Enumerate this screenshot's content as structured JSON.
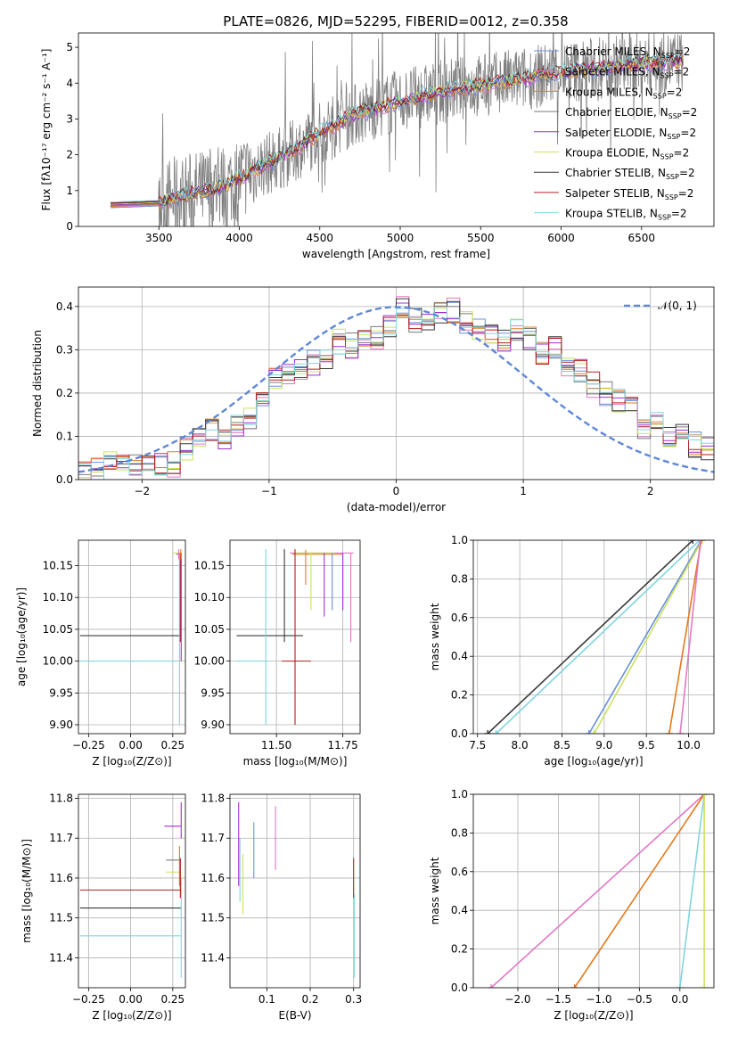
{
  "figure_title": "PLATE=0826, MJD=52295, FIBERID=0012, z=0.358",
  "colors": {
    "chabrier_miles": "#6a8fdc",
    "salpeter_miles": "#e377c2",
    "kroupa_miles": "#e07b20",
    "chabrier_elodie": "#7a7a7a",
    "salpeter_elodie": "#9f2fcf",
    "kroupa_elodie": "#c9e35c",
    "chabrier_stelib": "#3a3a3a",
    "salpeter_stelib": "#b22020",
    "kroupa_stelib": "#7fd6dc",
    "data": "#808080",
    "gauss": "#5f87d6"
  },
  "chart_data": [
    {
      "id": "spectrum",
      "type": "line",
      "xlabel": "wavelength [Angstrom, rest frame]",
      "ylabel": "Flux [fλ10⁻¹⁷ erg cm⁻² s⁻¹ A⁻¹]",
      "xlim": [
        3000,
        6950
      ],
      "ylim": [
        0,
        5.4
      ],
      "xticks": [
        "3500",
        "4000",
        "4500",
        "5000",
        "5500",
        "6000",
        "6500"
      ],
      "yticks": [
        "0",
        "1",
        "2",
        "3",
        "4",
        "5"
      ],
      "legend_position": "top-right",
      "series": [
        {
          "name": "Chabrier MILES, N",
          "sub": "SSP",
          "suffix": "=2",
          "color": "#6a8fdc"
        },
        {
          "name": "Salpeter MILES, N",
          "sub": "SSP",
          "suffix": "=2",
          "color": "#e377c2"
        },
        {
          "name": "Kroupa MILES, N",
          "sub": "SSP",
          "suffix": "=2",
          "color": "#e07b20"
        },
        {
          "name": "Chabrier ELODIE, N",
          "sub": "SSP",
          "suffix": "=2",
          "color": "#7a7a7a"
        },
        {
          "name": "Salpeter ELODIE, N",
          "sub": "SSP",
          "suffix": "=2",
          "color": "#9f2fcf"
        },
        {
          "name": "Kroupa ELODIE, N",
          "sub": "SSP",
          "suffix": "=2",
          "color": "#c9e35c"
        },
        {
          "name": "Chabrier STELIB, N",
          "sub": "SSP",
          "suffix": "=2",
          "color": "#3a3a3a"
        },
        {
          "name": "Salpeter STELIB, N",
          "sub": "SSP",
          "suffix": "=2",
          "color": "#b22020"
        },
        {
          "name": "Kroupa STELIB, N",
          "sub": "SSP",
          "suffix": "=2",
          "color": "#7fd6dc"
        }
      ],
      "continuum": {
        "x": [
          3200,
          3500,
          3700,
          3900,
          4100,
          4300,
          4500,
          4700,
          5000,
          5300,
          5600,
          6000,
          6400,
          6750
        ],
        "y": [
          0.6,
          0.65,
          0.9,
          1.1,
          1.6,
          2.0,
          2.6,
          3.1,
          3.5,
          3.8,
          4.0,
          4.3,
          4.5,
          4.6
        ]
      }
    },
    {
      "id": "residuals",
      "type": "histogram",
      "xlabel": "(data-model)/error",
      "ylabel": "Normed distribution",
      "xlim": [
        -2.5,
        2.5
      ],
      "ylim": [
        0,
        0.445
      ],
      "xticks": [
        "−2",
        "−1",
        "0",
        "1",
        "2"
      ],
      "yticks": [
        "0.0",
        "0.1",
        "0.2",
        "0.3",
        "0.4"
      ],
      "legend": "𝒩(0, 1)",
      "bin_width": 0.1,
      "bins_x": [
        -2.5,
        -2.4,
        -2.3,
        -2.2,
        -2.1,
        -2.0,
        -1.9,
        -1.8,
        -1.7,
        -1.6,
        -1.5,
        -1.4,
        -1.3,
        -1.2,
        -1.1,
        -1.0,
        -0.9,
        -0.8,
        -0.7,
        -0.6,
        -0.5,
        -0.4,
        -0.3,
        -0.2,
        -0.1,
        0.0,
        0.1,
        0.2,
        0.3,
        0.4,
        0.5,
        0.6,
        0.7,
        0.8,
        0.9,
        1.0,
        1.1,
        1.2,
        1.3,
        1.4,
        1.5,
        1.6,
        1.7,
        1.8,
        1.9,
        2.0,
        2.1,
        2.2,
        2.3,
        2.4
      ],
      "base": [
        0.015,
        0.02,
        0.05,
        0.04,
        0.03,
        0.05,
        0.04,
        0.035,
        0.07,
        0.09,
        0.12,
        0.1,
        0.13,
        0.14,
        0.18,
        0.23,
        0.25,
        0.26,
        0.27,
        0.28,
        0.32,
        0.31,
        0.33,
        0.33,
        0.35,
        0.4,
        0.37,
        0.36,
        0.38,
        0.39,
        0.36,
        0.35,
        0.34,
        0.32,
        0.35,
        0.33,
        0.29,
        0.31,
        0.26,
        0.25,
        0.22,
        0.2,
        0.18,
        0.16,
        0.12,
        0.13,
        0.1,
        0.11,
        0.08,
        0.07
      ]
    },
    {
      "id": "age_vs_Z",
      "type": "scatter",
      "xlabel": "Z [log₁₀(Z/Z⊙)]",
      "ylabel": "age  [log₁₀(age/yr)]",
      "xlim": [
        -0.31,
        0.325
      ],
      "ylim": [
        9.886,
        10.19
      ],
      "xticks": [
        "−0.25",
        "0.00",
        "0.25"
      ],
      "yticks": [
        "9.90",
        "9.95",
        "10.00",
        "10.05",
        "10.10",
        "10.15"
      ]
    },
    {
      "id": "age_vs_mass",
      "type": "scatter",
      "xlabel": "mass [log₁₀(M/M⊙)]",
      "xlim": [
        11.325,
        11.815
      ],
      "ylim": [
        9.886,
        10.19
      ],
      "xticks": [
        "11.50",
        "11.75"
      ],
      "yticks": [
        "9.90",
        "9.95",
        "10.00",
        "10.05",
        "10.10",
        "10.15"
      ]
    },
    {
      "id": "weight_vs_age",
      "type": "line",
      "xlabel": "age  [log₁₀(age/yr)]",
      "ylabel": "mass weight",
      "xlim": [
        7.45,
        10.3
      ],
      "ylim": [
        0,
        1
      ],
      "xticks": [
        "7.5",
        "8.0",
        "8.5",
        "9.0",
        "9.5",
        "10.0"
      ],
      "yticks": [
        "0.0",
        "0.2",
        "0.4",
        "0.6",
        "0.8",
        "1.0"
      ],
      "series": [
        {
          "x": [
            7.62,
            10.05
          ],
          "y": [
            0,
            1
          ],
          "color": "#3a3a3a"
        },
        {
          "x": [
            7.72,
            10.13
          ],
          "y": [
            0,
            1
          ],
          "color": "#7fd6dc"
        },
        {
          "x": [
            8.82,
            10.15
          ],
          "y": [
            0,
            1
          ],
          "color": "#6a8fdc"
        },
        {
          "x": [
            8.88,
            10.16
          ],
          "y": [
            0,
            1
          ],
          "color": "#c9e35c"
        },
        {
          "x": [
            9.77,
            10.15
          ],
          "y": [
            0,
            1
          ],
          "color": "#e07b20"
        },
        {
          "x": [
            9.9,
            10.14
          ],
          "y": [
            0,
            1
          ],
          "color": "#e377c2"
        }
      ]
    },
    {
      "id": "mass_vs_Z",
      "type": "scatter",
      "xlabel": "Z [log₁₀(Z/Z⊙)]",
      "ylabel": "mass [log₁₀(M/M⊙)]",
      "xlim": [
        -0.31,
        0.325
      ],
      "ylim": [
        11.325,
        11.81
      ],
      "xticks": [
        "−0.25",
        "0.00",
        "0.25"
      ],
      "yticks": [
        "11.4",
        "11.5",
        "11.6",
        "11.7",
        "11.8"
      ]
    },
    {
      "id": "mass_vs_ebv",
      "type": "scatter",
      "xlabel": "E(B-V)",
      "xlim": [
        0.015,
        0.315
      ],
      "ylim": [
        11.325,
        11.81
      ],
      "xticks": [
        "0.1",
        "0.2",
        "0.3"
      ],
      "yticks": [
        "11.4",
        "11.5",
        "11.6",
        "11.7",
        "11.8"
      ]
    },
    {
      "id": "weight_vs_Z",
      "type": "line",
      "xlabel": "Z [log₁₀(Z/Z⊙)]",
      "ylabel": "mass weight",
      "xlim": [
        -2.55,
        0.42
      ],
      "ylim": [
        0,
        1
      ],
      "xticks": [
        "−2.0",
        "−1.5",
        "−1.0",
        "−0.5",
        "0.0"
      ],
      "yticks": [
        "0.0",
        "0.2",
        "0.4",
        "0.6",
        "0.8",
        "1.0"
      ],
      "series": [
        {
          "x": [
            -2.33,
            0.3
          ],
          "y": [
            0,
            1
          ],
          "color": "#e377c2"
        },
        {
          "x": [
            -1.3,
            0.3
          ],
          "y": [
            0,
            1
          ],
          "color": "#e07b20"
        },
        {
          "x": [
            0.0,
            0.3
          ],
          "y": [
            0,
            1
          ],
          "color": "#7fd6dc"
        },
        {
          "x": [
            0.3,
            0.3
          ],
          "y": [
            0,
            1
          ],
          "color": "#c9e35c"
        }
      ]
    }
  ]
}
